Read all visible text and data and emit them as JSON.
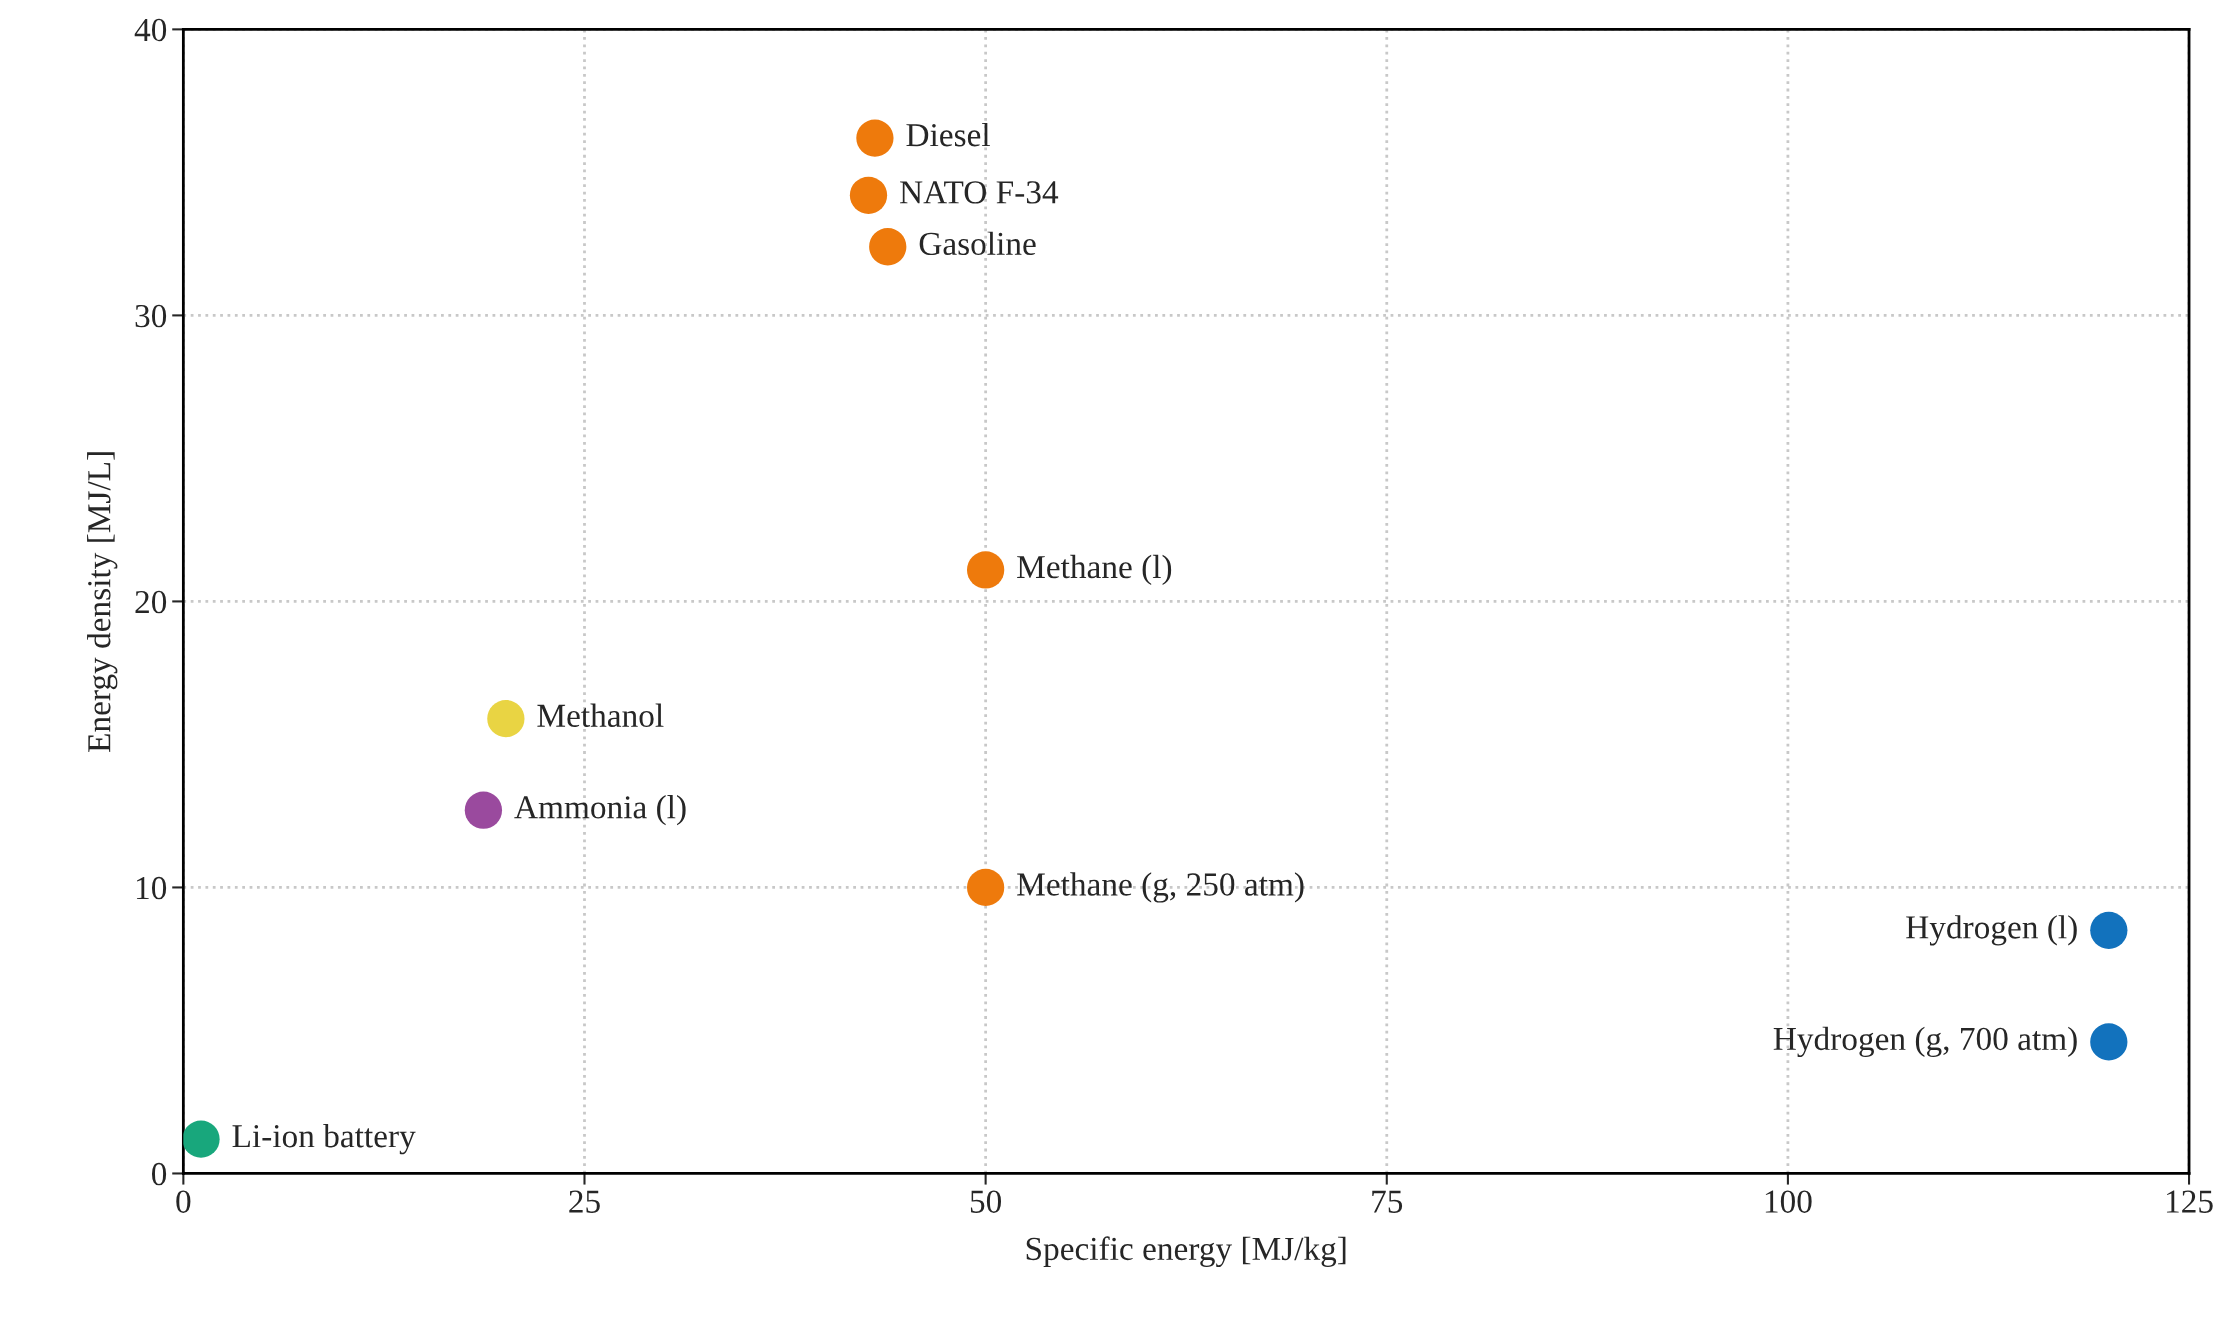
{
  "chart_data": {
    "type": "scatter",
    "xlabel": "Specific energy [MJ/kg]",
    "ylabel": "Energy density [MJ/L]",
    "x": [
      43.1,
      42.7,
      43.9,
      50,
      20.1,
      18.7,
      50,
      120,
      120,
      1.1
    ],
    "values": [
      36.2,
      34.2,
      32.4,
      21.1,
      15.9,
      12.7,
      10.0,
      8.5,
      4.6,
      1.2
    ],
    "colors": [
      "#ee7a0c",
      "#ee7a0c",
      "#ee7a0c",
      "#ee7a0c",
      "#e9d443",
      "#9a4a9e",
      "#ee7a0c",
      "#1272bd",
      "#1272bd",
      "#18a77c"
    ],
    "annotations": [
      {
        "text": "Diesel",
        "x": 43.1,
        "y": 36.2
      },
      {
        "text": "NATO F-34",
        "x": 42.7,
        "y": 34.2
      },
      {
        "text": "Gasoline",
        "x": 43.9,
        "y": 32.4
      },
      {
        "text": "Methane (l)",
        "x": 50,
        "y": 21.1
      },
      {
        "text": "Methanol",
        "x": 20.1,
        "y": 15.9
      },
      {
        "text": "Ammonia (l)",
        "x": 18.7,
        "y": 12.7
      },
      {
        "text": "Methane (g, 250 atm)",
        "x": 50,
        "y": 10.0
      },
      {
        "text": "Hydrogen (l)",
        "x": 120,
        "y": 8.5
      },
      {
        "text": "Hydrogen (g, 700 atm)",
        "x": 120,
        "y": 4.6
      },
      {
        "text": "Li-ion battery",
        "x": 1.1,
        "y": 1.2
      }
    ],
    "xlim": [
      0,
      125
    ],
    "xticks": [
      0,
      25,
      50,
      75,
      100,
      125
    ],
    "ylim": [
      0,
      40
    ],
    "yticks": [
      0,
      10,
      20,
      30,
      40
    ],
    "grid": true,
    "marker": "circle",
    "legend": false
  }
}
